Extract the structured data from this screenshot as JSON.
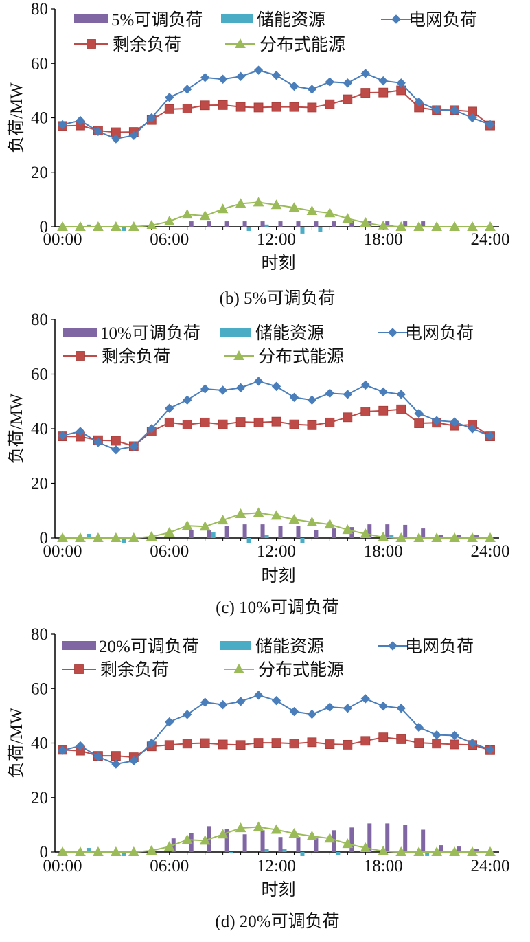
{
  "colors": {
    "adjustable": "#8066A3",
    "storage": "#4BACC6",
    "grid": "#4A7EBB",
    "remaining": "#BE4B48",
    "distributed": "#9BBB59"
  },
  "chart_data": [
    {
      "type": "line",
      "caption": "(b) 5%可调负荷",
      "xlabel": "时刻",
      "ylabel": "负荷/MW",
      "ylim": [
        0,
        80
      ],
      "yticks": [
        "0",
        "20",
        "40",
        "60",
        "80"
      ],
      "xticks": [
        "00:00",
        "06:00",
        "12:00",
        "18:00",
        "24:00"
      ],
      "x": [
        0,
        1,
        2,
        3,
        4,
        5,
        6,
        7,
        8,
        9,
        10,
        11,
        12,
        13,
        14,
        15,
        16,
        17,
        18,
        19,
        20,
        21,
        22,
        23,
        24
      ],
      "legend": [
        "5%可调负荷",
        "储能资源",
        "电网负荷",
        "剩余负荷",
        "分布式能源"
      ],
      "series": [
        {
          "name": "5%可调负荷",
          "type": "bar",
          "values": [
            0,
            0,
            0,
            0,
            0,
            0,
            0,
            2,
            2,
            2,
            2,
            2,
            2,
            2,
            2,
            2,
            2,
            2,
            2,
            2,
            2,
            0,
            0,
            0,
            0
          ]
        },
        {
          "name": "储能资源",
          "type": "bar",
          "values": [
            0,
            0.8,
            0,
            -1.5,
            0,
            0,
            0,
            0,
            0,
            0,
            -1.5,
            0.8,
            0,
            -2.5,
            -2,
            0,
            0,
            0,
            0.5,
            0,
            0,
            0,
            0,
            0,
            0
          ]
        },
        {
          "name": "电网负荷",
          "type": "line",
          "values": [
            37.5,
            39,
            35,
            32.3,
            33.5,
            40,
            47.5,
            50.5,
            54.8,
            54.2,
            55.2,
            57.5,
            55.6,
            51.6,
            50.5,
            53.2,
            52.8,
            56.3,
            53.6,
            52.8,
            45.8,
            43,
            42.8,
            40,
            37.5
          ]
        },
        {
          "name": "剩余负荷",
          "type": "line",
          "values": [
            37,
            37.2,
            35.3,
            34.7,
            34.8,
            39.2,
            43.2,
            43.4,
            44.6,
            44.7,
            44,
            43.8,
            44,
            44,
            43.8,
            45,
            46.8,
            49.2,
            49.3,
            50.1,
            43.8,
            42.8,
            42.8,
            42.3,
            37.2
          ]
        },
        {
          "name": "分布式能源",
          "type": "line",
          "values": [
            0,
            0,
            0,
            0,
            0,
            0.5,
            2,
            4.5,
            4,
            6.5,
            8.5,
            9,
            8,
            7,
            5.8,
            5,
            3,
            1.5,
            0.3,
            0,
            0,
            0,
            0,
            0,
            0
          ]
        }
      ]
    },
    {
      "type": "line",
      "caption": "(c) 10%可调负荷",
      "xlabel": "时刻",
      "ylabel": "负荷/MW",
      "ylim": [
        0,
        80
      ],
      "yticks": [
        "0",
        "20",
        "40",
        "60",
        "80"
      ],
      "xticks": [
        "00:00",
        "06:00",
        "12:00",
        "18:00",
        "24:00"
      ],
      "x": [
        0,
        1,
        2,
        3,
        4,
        5,
        6,
        7,
        8,
        9,
        10,
        11,
        12,
        13,
        14,
        15,
        16,
        17,
        18,
        19,
        20,
        21,
        22,
        23,
        24
      ],
      "legend": [
        "10%可调负荷",
        "储能资源",
        "电网负荷",
        "剩余负荷",
        "分布式能源"
      ],
      "series": [
        {
          "name": "10%可调负荷",
          "type": "bar",
          "values": [
            0,
            0,
            0,
            0,
            0,
            0,
            0,
            3,
            3,
            4.5,
            5,
            5,
            4.5,
            4.5,
            3,
            3.5,
            4,
            5,
            5,
            4.8,
            3.5,
            1,
            1,
            1,
            0
          ]
        },
        {
          "name": "储能资源",
          "type": "bar",
          "values": [
            0,
            1.5,
            0,
            -2,
            0,
            0,
            0,
            0,
            2,
            0,
            -2,
            1,
            0,
            -2,
            0,
            0,
            0,
            0,
            1,
            0,
            0,
            0,
            0,
            0,
            0
          ]
        },
        {
          "name": "电网负荷",
          "type": "line",
          "values": [
            37.5,
            39,
            35,
            32.3,
            33.5,
            40,
            47.5,
            50.5,
            54.6,
            54.1,
            55,
            57.4,
            55.5,
            51.5,
            50.5,
            53,
            52.6,
            56,
            53.5,
            52.6,
            45.6,
            43,
            42.5,
            40,
            37.3
          ]
        },
        {
          "name": "剩余负荷",
          "type": "line",
          "values": [
            37.2,
            37.1,
            35.8,
            35.6,
            33.6,
            39,
            42.3,
            41.5,
            42.3,
            41.6,
            42.5,
            42.3,
            42.6,
            41.6,
            41.3,
            42.3,
            44.2,
            46.3,
            46.6,
            47.1,
            42,
            42.2,
            41.1,
            41.5,
            37.2
          ]
        },
        {
          "name": "分布式能源",
          "type": "line",
          "values": [
            0,
            0,
            0,
            0,
            0,
            0.5,
            2,
            4.5,
            4.2,
            6.5,
            8.8,
            9.2,
            8.2,
            6.8,
            5.8,
            5,
            3,
            1.5,
            0.3,
            0,
            0,
            0,
            0,
            0,
            0
          ]
        }
      ]
    },
    {
      "type": "line",
      "caption": "(d) 20%可调负荷",
      "xlabel": "时刻",
      "ylabel": "负荷/MW",
      "ylim": [
        0,
        80
      ],
      "yticks": [
        "0",
        "20",
        "40",
        "60",
        "80"
      ],
      "xticks": [
        "00:00",
        "06:00",
        "12:00",
        "18:00",
        "24:00"
      ],
      "x": [
        0,
        1,
        2,
        3,
        4,
        5,
        6,
        7,
        8,
        9,
        10,
        11,
        12,
        13,
        14,
        15,
        16,
        17,
        18,
        19,
        20,
        21,
        22,
        23,
        24
      ],
      "legend": [
        "20%可调负荷",
        "储能资源",
        "电网负荷",
        "剩余负荷",
        "分布式能源"
      ],
      "series": [
        {
          "name": "20%可调负荷",
          "type": "bar",
          "values": [
            0,
            0,
            0,
            0,
            0,
            0,
            5,
            7,
            9.5,
            8.5,
            6.5,
            8,
            5.5,
            5.5,
            5,
            8,
            9,
            10.5,
            10.5,
            10,
            8.2,
            2.5,
            2,
            1,
            0
          ]
        },
        {
          "name": "储能资源",
          "type": "bar",
          "values": [
            0,
            1.5,
            0,
            -1.5,
            0,
            0,
            0,
            0,
            0,
            -0.5,
            0,
            1,
            1,
            -1.5,
            0,
            -1,
            0,
            0,
            0,
            0,
            -1.5,
            0,
            0,
            0,
            0
          ]
        },
        {
          "name": "电网负荷",
          "type": "line",
          "values": [
            37.3,
            39,
            35,
            32.3,
            33.5,
            40,
            47.8,
            50.5,
            55,
            54.1,
            55.3,
            57.6,
            55.6,
            51.6,
            50.6,
            53.2,
            52.8,
            56.3,
            53.6,
            52.8,
            45.8,
            43,
            42.8,
            40,
            37.5
          ]
        },
        {
          "name": "剩余负荷",
          "type": "line",
          "values": [
            37.5,
            37.2,
            35.3,
            35.3,
            34.8,
            38.8,
            39.3,
            39.8,
            40,
            39.5,
            39.3,
            40.1,
            40.1,
            39.8,
            40.3,
            39.6,
            39.4,
            40.8,
            42.1,
            41.4,
            40.1,
            39.8,
            39.5,
            39.3,
            37.4
          ]
        },
        {
          "name": "分布式能源",
          "type": "line",
          "values": [
            0,
            0,
            0,
            0,
            0,
            0.5,
            2,
            4.5,
            4.2,
            6.5,
            8.8,
            9.2,
            8.2,
            6.8,
            5.8,
            5,
            3,
            1.5,
            0.3,
            0,
            0,
            0,
            0,
            0,
            0
          ]
        }
      ]
    }
  ]
}
